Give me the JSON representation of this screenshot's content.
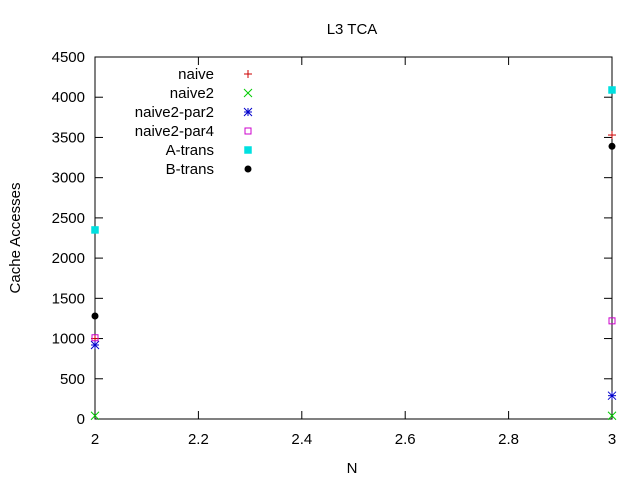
{
  "chart_data": {
    "type": "scatter",
    "title": "L3 TCA",
    "xlabel": "N",
    "ylabel": "Cache Accesses",
    "xlim": [
      2,
      3
    ],
    "ylim": [
      0,
      4500
    ],
    "xticks": [
      "2",
      "2.2",
      "2.4",
      "2.6",
      "2.8",
      "3"
    ],
    "xtick_values": [
      2,
      2.2,
      2.4,
      2.6,
      2.8,
      3
    ],
    "yticks": [
      "0",
      "500",
      "1000",
      "1500",
      "2000",
      "2500",
      "3000",
      "3500",
      "4000",
      "4500"
    ],
    "ytick_values": [
      0,
      500,
      1000,
      1500,
      2000,
      2500,
      3000,
      3500,
      4000,
      4500
    ],
    "grid": false,
    "legend_position": "top-left",
    "series": [
      {
        "name": "naive",
        "color": "#cc0000",
        "marker": "plus",
        "points": [
          [
            2,
            1000
          ],
          [
            3,
            3530
          ]
        ]
      },
      {
        "name": "naive2",
        "color": "#00cc00",
        "marker": "cross",
        "points": [
          [
            2,
            40
          ],
          [
            3,
            40
          ]
        ]
      },
      {
        "name": "naive2-par2",
        "color": "#0000cc",
        "marker": "asterisk",
        "points": [
          [
            2,
            920
          ],
          [
            3,
            290
          ]
        ]
      },
      {
        "name": "naive2-par4",
        "color": "#cc00cc",
        "marker": "square-open",
        "points": [
          [
            2,
            1010
          ],
          [
            3,
            1220
          ]
        ]
      },
      {
        "name": "A-trans",
        "color": "#00e0e0",
        "marker": "square-filled",
        "points": [
          [
            2,
            2350
          ],
          [
            3,
            4090
          ]
        ]
      },
      {
        "name": "B-trans",
        "color": "#000000",
        "marker": "circle-filled",
        "points": [
          [
            2,
            1280
          ],
          [
            3,
            3390
          ]
        ]
      }
    ]
  }
}
